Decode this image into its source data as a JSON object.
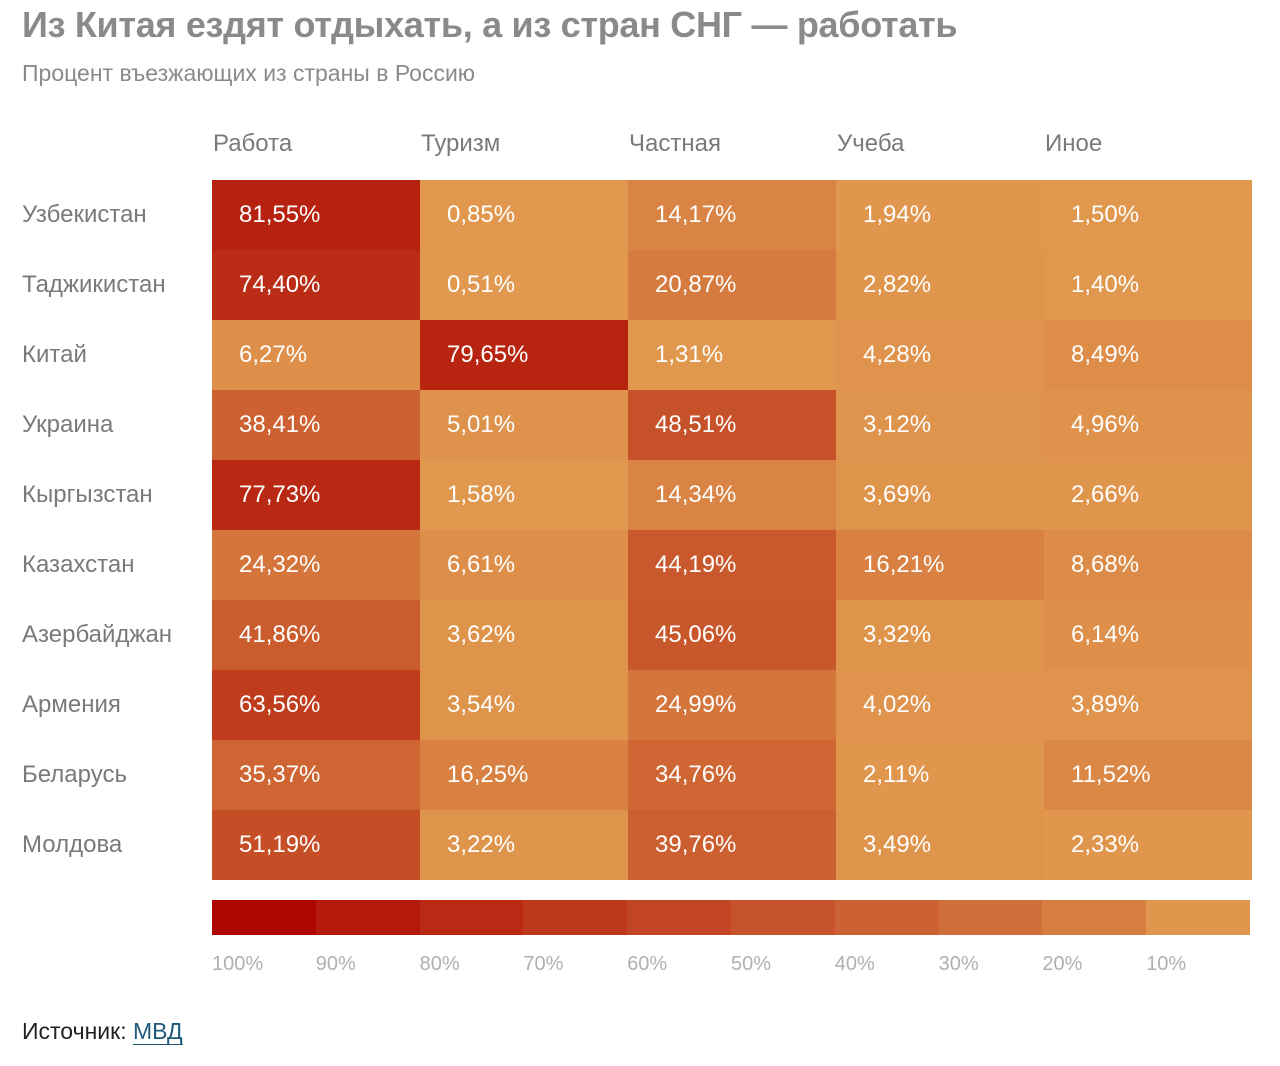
{
  "title": "Из Китая ездят отдыхать, а из стран СНГ — работать",
  "subtitle": "Процент въезжающих из страны в Россию",
  "source_label": "Источник:",
  "source_link": "МВД",
  "chart_data": {
    "type": "heatmap",
    "columns": [
      "Работа",
      "Туризм",
      "Частная",
      "Учеба",
      "Иное"
    ],
    "rows": [
      {
        "country": "Узбекистан",
        "labels": [
          "81,55%",
          "0,85%",
          "14,17%",
          "1,94%",
          "1,50%"
        ],
        "values": [
          81.55,
          0.85,
          14.17,
          1.94,
          1.5
        ]
      },
      {
        "country": "Таджикистан",
        "labels": [
          "74,40%",
          "0,51%",
          "20,87%",
          "2,82%",
          "1,40%"
        ],
        "values": [
          74.4,
          0.51,
          20.87,
          2.82,
          1.4
        ]
      },
      {
        "country": "Китай",
        "labels": [
          "6,27%",
          "79,65%",
          "1,31%",
          "4,28%",
          "8,49%"
        ],
        "values": [
          6.27,
          79.65,
          1.31,
          4.28,
          8.49
        ]
      },
      {
        "country": "Украина",
        "labels": [
          "38,41%",
          "5,01%",
          "48,51%",
          "3,12%",
          "4,96%"
        ],
        "values": [
          38.41,
          5.01,
          48.51,
          3.12,
          4.96
        ]
      },
      {
        "country": "Кыргызстан",
        "labels": [
          "77,73%",
          "1,58%",
          "14,34%",
          "3,69%",
          "2,66%"
        ],
        "values": [
          77.73,
          1.58,
          14.34,
          3.69,
          2.66
        ]
      },
      {
        "country": "Казахстан",
        "labels": [
          "24,32%",
          "6,61%",
          "44,19%",
          "16,21%",
          "8,68%"
        ],
        "values": [
          24.32,
          6.61,
          44.19,
          16.21,
          8.68
        ]
      },
      {
        "country": "Азербайджан",
        "labels": [
          "41,86%",
          "3,62%",
          "45,06%",
          "3,32%",
          "6,14%"
        ],
        "values": [
          41.86,
          3.62,
          45.06,
          3.32,
          6.14
        ]
      },
      {
        "country": "Армения",
        "labels": [
          "63,56%",
          "3,54%",
          "24,99%",
          "4,02%",
          "3,89%"
        ],
        "values": [
          63.56,
          3.54,
          24.99,
          4.02,
          3.89
        ]
      },
      {
        "country": "Беларусь",
        "labels": [
          "35,37%",
          "16,25%",
          "34,76%",
          "2,11%",
          "11,52%"
        ],
        "values": [
          35.37,
          16.25,
          34.76,
          2.11,
          11.52
        ]
      },
      {
        "country": "Молдова",
        "labels": [
          "51,19%",
          "3,22%",
          "39,76%",
          "3,49%",
          "2,33%"
        ],
        "values": [
          51.19,
          3.22,
          39.76,
          3.49,
          2.33
        ]
      }
    ],
    "legend": {
      "ticks": [
        "100%",
        "90%",
        "80%",
        "70%",
        "60%",
        "50%",
        "40%",
        "30%",
        "20%",
        "10%"
      ],
      "colors": [
        "#ac0701",
        "#b41a0b",
        "#b92914",
        "#be381d",
        "#c24525",
        "#c7532c",
        "#cc6133",
        "#d16f3a",
        "#d67d42",
        "#e0974d"
      ]
    },
    "color_scale": {
      "low": "#e1994f",
      "high": "#ac0701",
      "min": 0,
      "max": 100
    }
  }
}
